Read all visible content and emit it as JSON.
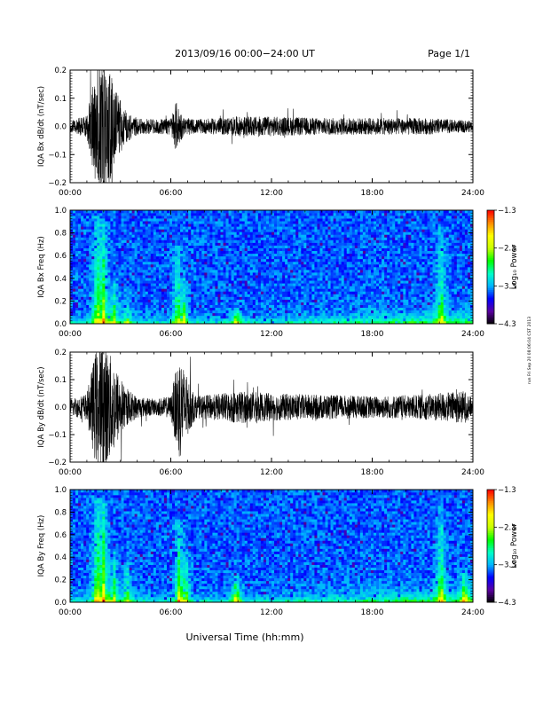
{
  "header": {
    "title": "2013/09/16  00:00−24:00 UT",
    "page": "Page 1/1"
  },
  "footer": {
    "xlabel": "Universal Time (hh:mm)"
  },
  "side_note": "run Fri Sep 20 08:06:04 CST 2013",
  "chart_data": [
    {
      "type": "line",
      "ylabel": "IQA Bx dB/dt (nT/sec)",
      "xlim": [
        "00:00",
        "24:00"
      ],
      "xticks": [
        "00:00",
        "06:00",
        "12:00",
        "18:00",
        "24:00"
      ],
      "ylim": [
        -0.2,
        0.2
      ],
      "yticks": [
        "−0.2",
        "−0.1",
        "0.0",
        "0.1",
        "0.2"
      ],
      "envelope": {
        "hours": [
          0,
          1,
          1.5,
          1.8,
          2.2,
          2.8,
          3.3,
          4,
          5,
          6,
          6.3,
          6.8,
          7.5,
          9,
          10,
          12,
          15,
          18,
          21,
          24
        ],
        "amplitude": [
          0.02,
          0.04,
          0.2,
          0.25,
          0.22,
          0.12,
          0.06,
          0.03,
          0.025,
          0.03,
          0.09,
          0.03,
          0.025,
          0.03,
          0.035,
          0.035,
          0.03,
          0.03,
          0.03,
          0.02
        ]
      }
    },
    {
      "type": "heatmap",
      "ylabel": "IQA Bx Freq (Hz)",
      "xlim": [
        "00:00",
        "24:00"
      ],
      "xticks": [
        "00:00",
        "06:00",
        "12:00",
        "18:00",
        "24:00"
      ],
      "ylim": [
        0,
        1.0
      ],
      "yticks": [
        "0.0",
        "0.2",
        "0.4",
        "0.6",
        "0.8",
        "1.0"
      ],
      "colorbar": {
        "label": "Log₁₀ Power",
        "ticks": [
          "−1.3",
          "−2.3",
          "−3.3",
          "−4.3"
        ],
        "range": [
          -4.3,
          -1.3
        ],
        "colors": [
          "#000000",
          "#5a00a0",
          "#0000ff",
          "#00b4ff",
          "#00ffc8",
          "#00ff00",
          "#c8ff00",
          "#ffff00",
          "#ff8c00",
          "#ff0000"
        ]
      },
      "background": "#1e28c8",
      "features": [
        {
          "hour": 1.6,
          "freq_max": 0.95,
          "intensity": 0.55
        },
        {
          "hour": 2.0,
          "freq_max": 0.9,
          "intensity": 0.5
        },
        {
          "hour": 2.6,
          "freq_max": 0.4,
          "intensity": 0.45
        },
        {
          "hour": 3.4,
          "freq_max": 0.3,
          "intensity": 0.35
        },
        {
          "hour": 6.4,
          "freq_max": 0.7,
          "intensity": 0.45
        },
        {
          "hour": 6.8,
          "freq_max": 0.4,
          "intensity": 0.35
        },
        {
          "hour": 9.9,
          "freq_max": 0.15,
          "intensity": 0.5
        },
        {
          "hour": 22.1,
          "freq_max": 0.85,
          "intensity": 0.45
        }
      ]
    },
    {
      "type": "line",
      "ylabel": "IQA By dB/dt (nT/sec)",
      "xlim": [
        "00:00",
        "24:00"
      ],
      "xticks": [
        "00:00",
        "06:00",
        "12:00",
        "18:00",
        "24:00"
      ],
      "ylim": [
        -0.2,
        0.2
      ],
      "yticks": [
        "−0.2",
        "−0.1",
        "0.0",
        "0.1",
        "0.2"
      ],
      "envelope": {
        "hours": [
          0,
          1,
          1.5,
          1.8,
          2.2,
          2.8,
          3.3,
          4,
          5,
          6,
          6.5,
          6.9,
          7.5,
          9,
          10,
          12,
          15,
          18,
          21,
          23.5,
          24
        ],
        "amplitude": [
          0.03,
          0.05,
          0.2,
          0.25,
          0.22,
          0.14,
          0.07,
          0.04,
          0.03,
          0.04,
          0.2,
          0.12,
          0.04,
          0.05,
          0.06,
          0.05,
          0.045,
          0.04,
          0.045,
          0.06,
          0.03
        ]
      }
    },
    {
      "type": "heatmap",
      "ylabel": "IQA By Freq (Hz)",
      "xlim": [
        "00:00",
        "24:00"
      ],
      "xticks": [
        "00:00",
        "06:00",
        "12:00",
        "18:00",
        "24:00"
      ],
      "ylim": [
        0,
        1.0
      ],
      "yticks": [
        "0.0",
        "0.2",
        "0.4",
        "0.6",
        "0.8",
        "1.0"
      ],
      "colorbar": {
        "label": "Log₁₀ Power",
        "ticks": [
          "−1.3",
          "−2.3",
          "−3.3",
          "−4.3"
        ],
        "range": [
          -4.3,
          -1.3
        ],
        "colors": [
          "#000000",
          "#5a00a0",
          "#0000ff",
          "#00b4ff",
          "#00ffc8",
          "#00ff00",
          "#c8ff00",
          "#ffff00",
          "#ff8c00",
          "#ff0000"
        ]
      },
      "background": "#1e28c8",
      "features": [
        {
          "hour": 1.6,
          "freq_max": 0.95,
          "intensity": 0.6
        },
        {
          "hour": 2.0,
          "freq_max": 0.9,
          "intensity": 0.55
        },
        {
          "hour": 2.6,
          "freq_max": 0.45,
          "intensity": 0.5
        },
        {
          "hour": 3.4,
          "freq_max": 0.35,
          "intensity": 0.4
        },
        {
          "hour": 6.5,
          "freq_max": 0.75,
          "intensity": 0.5
        },
        {
          "hour": 6.9,
          "freq_max": 0.45,
          "intensity": 0.4
        },
        {
          "hour": 9.9,
          "freq_max": 0.25,
          "intensity": 0.6
        },
        {
          "hour": 22.1,
          "freq_max": 0.85,
          "intensity": 0.5
        },
        {
          "hour": 23.5,
          "freq_max": 0.3,
          "intensity": 0.45
        }
      ]
    }
  ]
}
